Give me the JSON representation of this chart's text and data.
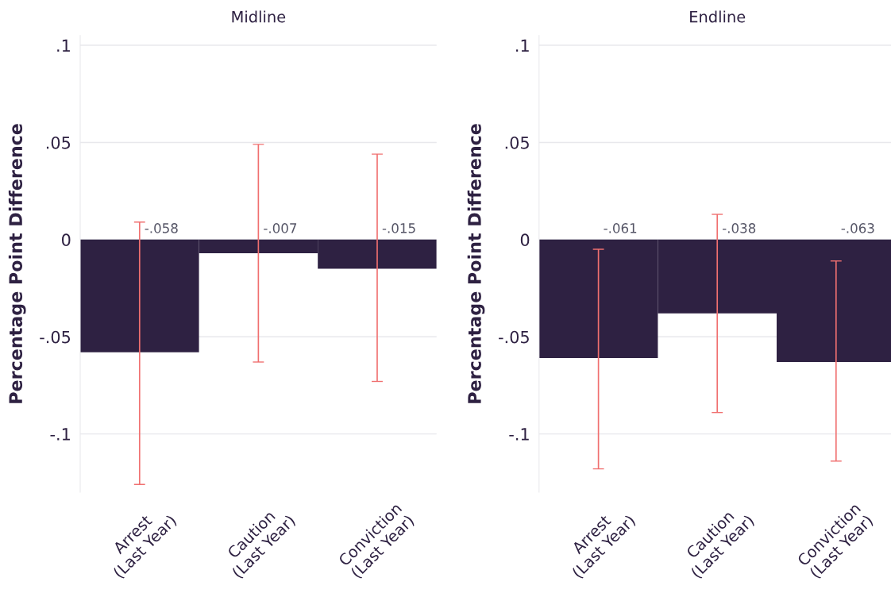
{
  "chart_data": [
    {
      "type": "bar",
      "title": "Midline",
      "ylabel": "Percentage Point Difference",
      "categories": [
        "Arrest\n(Last Year)",
        "Caution\n(Last Year)",
        "Conviction\n(Last Year)"
      ],
      "series": [
        {
          "color": "#2e2142",
          "values": [
            -0.058,
            -0.007,
            -0.015
          ],
          "value_labels": [
            "-.058",
            "-.007",
            "-.015"
          ],
          "errors": [
            [
              -0.126,
              0.009
            ],
            [
              -0.063,
              0.049
            ],
            [
              -0.073,
              0.044
            ]
          ]
        }
      ],
      "ylim": [
        -0.13,
        0.105
      ],
      "yticks": [
        {
          "value": 0.1,
          "label": ".1"
        },
        {
          "value": 0.05,
          "label": ".05"
        },
        0,
        {
          "value": -0.05,
          "label": "-.05"
        },
        {
          "value": -0.1,
          "label": "-.1"
        }
      ],
      "grid": "y",
      "legend": false
    },
    {
      "type": "bar",
      "title": "Endline",
      "ylabel": "Percentage Point Difference",
      "categories": [
        "Arrest\n(Last Year)",
        "Caution\n(Last Year)",
        "Conviction\n(Last Year)"
      ],
      "series": [
        {
          "color": "#2e2142",
          "values": [
            -0.061,
            -0.038,
            -0.063
          ],
          "value_labels": [
            "-.061",
            "-.038",
            "-.063"
          ],
          "errors": [
            [
              -0.118,
              -0.005
            ],
            [
              -0.089,
              0.013
            ],
            [
              -0.114,
              -0.011
            ]
          ]
        }
      ],
      "ylim": [
        -0.13,
        0.105
      ],
      "yticks": [
        {
          "value": 0.1,
          "label": ".1"
        },
        {
          "value": 0.05,
          "label": ".05"
        },
        0,
        {
          "value": -0.05,
          "label": "-.05"
        },
        {
          "value": -0.1,
          "label": "-.1"
        }
      ],
      "grid": "y",
      "legend": false
    }
  ]
}
